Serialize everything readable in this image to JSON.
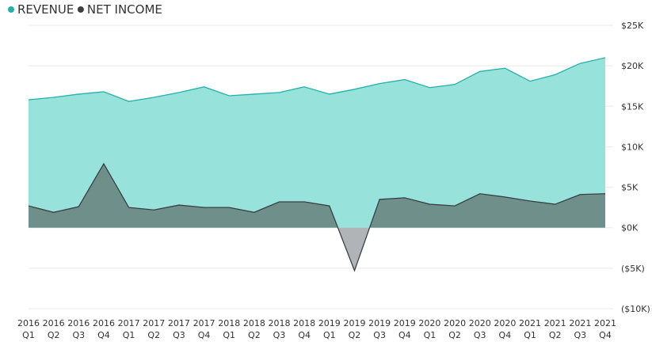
{
  "chart_data": {
    "type": "area",
    "title": "",
    "legend": {
      "placement": "top-left",
      "entries": [
        {
          "label": "REVENUE",
          "color": "#20B2AA"
        },
        {
          "label": "NET INCOME",
          "color": "#3A3F44"
        }
      ]
    },
    "x": [
      {
        "year": "2016",
        "quarter": "Q1"
      },
      {
        "year": "2016",
        "quarter": "Q2"
      },
      {
        "year": "2016",
        "quarter": "Q3"
      },
      {
        "year": "2016",
        "quarter": "Q4"
      },
      {
        "year": "2017",
        "quarter": "Q1"
      },
      {
        "year": "2017",
        "quarter": "Q2"
      },
      {
        "year": "2017",
        "quarter": "Q3"
      },
      {
        "year": "2017",
        "quarter": "Q4"
      },
      {
        "year": "2018",
        "quarter": "Q1"
      },
      {
        "year": "2018",
        "quarter": "Q2"
      },
      {
        "year": "2018",
        "quarter": "Q3"
      },
      {
        "year": "2018",
        "quarter": "Q4"
      },
      {
        "year": "2019",
        "quarter": "Q1"
      },
      {
        "year": "2019",
        "quarter": "Q2"
      },
      {
        "year": "2019",
        "quarter": "Q3"
      },
      {
        "year": "2019",
        "quarter": "Q4"
      },
      {
        "year": "2020",
        "quarter": "Q1"
      },
      {
        "year": "2020",
        "quarter": "Q2"
      },
      {
        "year": "2020",
        "quarter": "Q3"
      },
      {
        "year": "2020",
        "quarter": "Q4"
      },
      {
        "year": "2021",
        "quarter": "Q1"
      },
      {
        "year": "2021",
        "quarter": "Q2"
      },
      {
        "year": "2021",
        "quarter": "Q3"
      },
      {
        "year": "2021",
        "quarter": "Q4"
      }
    ],
    "series": [
      {
        "name": "REVENUE",
        "color": "#20B2AA",
        "fill": "#97E3DC",
        "values": [
          15800,
          16100,
          16500,
          16800,
          15600,
          16100,
          16700,
          17400,
          16300,
          16500,
          16700,
          17400,
          16500,
          17100,
          17800,
          18300,
          17300,
          17700,
          19300,
          19700,
          18100,
          18900,
          20300,
          21000
        ]
      },
      {
        "name": "NET INCOME",
        "color": "#3A3F44",
        "fill": "#6F8F8B",
        "negative_fill": "#B0B4B6",
        "values": [
          2700,
          1900,
          2600,
          7900,
          2500,
          2200,
          2800,
          2500,
          2500,
          1900,
          3200,
          3200,
          2700,
          -5300,
          3500,
          3700,
          2900,
          2700,
          4200,
          3800,
          3300,
          2900,
          4100,
          4200
        ]
      }
    ],
    "y_ticks": [
      "$25K",
      "$20K",
      "$15K",
      "$10K",
      "$5K",
      "$0K",
      "($5K)",
      "($10K)"
    ],
    "y_tick_values": [
      25000,
      20000,
      15000,
      10000,
      5000,
      0,
      -5000,
      -10000
    ],
    "ylim": [
      -10000,
      25000
    ],
    "ylabel": "",
    "xlabel": "",
    "grid": true,
    "y_axis_position": "right"
  }
}
